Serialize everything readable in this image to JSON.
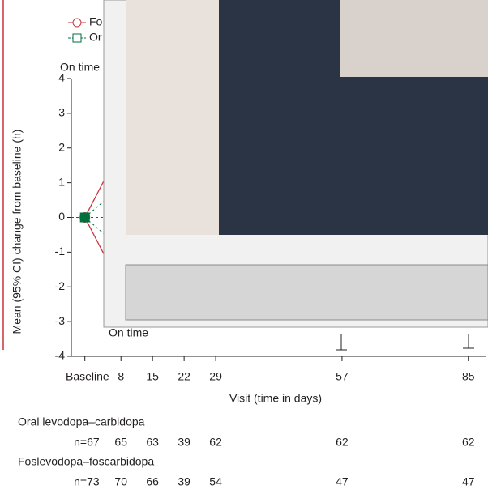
{
  "chart_data": {
    "type": "line",
    "y_label": "Mean (95% CI) change from baseline (h)",
    "x_label": "Visit (time in days)",
    "annotations": [
      "On time",
      "On time"
    ],
    "xlim": [
      -3,
      89
    ],
    "ylim": [
      -4,
      4
    ],
    "xticks": [
      {
        "value": 0,
        "label": "Baseline"
      },
      8,
      15,
      22,
      29,
      57,
      85
    ],
    "yticks": [
      -4,
      -3,
      -2,
      -1,
      0,
      1,
      2,
      3,
      4
    ],
    "x": [
      0,
      8,
      15,
      22,
      29,
      57,
      85
    ],
    "series": [
      {
        "name": "Fo",
        "color": "#c8323c",
        "values": [
          0,
          null,
          null,
          null,
          null,
          null,
          null
        ]
      },
      {
        "name": "Or",
        "color": "#00703c",
        "values": [
          0,
          null,
          null,
          null,
          null,
          null,
          null
        ]
      }
    ],
    "table": {
      "rows": [
        {
          "label": "Oral levodopa–carbidopa",
          "cells": [
            "n=67",
            "65",
            "63",
            "39",
            "62",
            "62",
            "62"
          ]
        },
        {
          "label": "Foslevodopa–foscarbidopa",
          "cells": [
            "n=73",
            "70",
            "66",
            "39",
            "54",
            "47",
            "47"
          ]
        }
      ]
    }
  }
}
